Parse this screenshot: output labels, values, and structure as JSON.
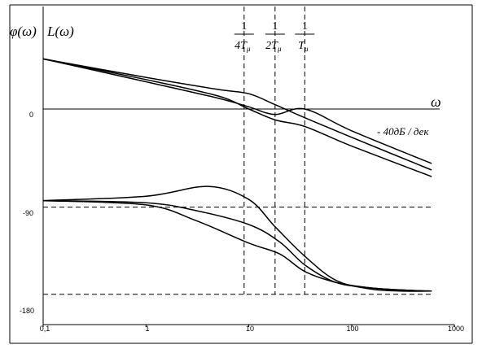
{
  "chart_data": {
    "type": "line",
    "x_scale": "log",
    "xlim": [
      0.1,
      1000
    ],
    "x_ticks": [
      "0,1",
      "1",
      "10",
      "100",
      "1000"
    ],
    "x_tick_values": [
      0.1,
      1,
      10,
      100,
      1000
    ],
    "y_ticks": [
      "0",
      "-90",
      "-180"
    ],
    "y_tick_values": [
      0,
      -90,
      -180
    ],
    "labels": {
      "phi": "φ(ω)",
      "L": "L(ω)",
      "omega": "ω",
      "slope": "- 40дБ / дек"
    },
    "vertical_markers": [
      {
        "x": 9,
        "num": "1",
        "den": "4T",
        "sub": "μ"
      },
      {
        "x": 18,
        "num": "1",
        "den": "2T",
        "sub": "μ"
      },
      {
        "x": 35,
        "num": "1",
        "den": "T",
        "sub": "μ"
      }
    ],
    "horizontal_reference_lines": [
      -90,
      -170
    ],
    "series": [
      {
        "group": "magnitude",
        "x": [
          0.1,
          1,
          5,
          10,
          18,
          35,
          100,
          600
        ],
        "y": [
          46,
          29,
          18,
          14,
          4,
          -8,
          -26,
          -56
        ]
      },
      {
        "group": "magnitude",
        "x": [
          0.1,
          1,
          5,
          10,
          18,
          35,
          100,
          600
        ],
        "y": [
          46,
          27,
          12,
          0,
          -10,
          -16,
          -34,
          -62
        ]
      },
      {
        "group": "magnitude",
        "x": [
          0.1,
          1,
          5,
          10,
          18,
          35,
          100,
          600
        ],
        "y": [
          46,
          25,
          10,
          2,
          -5,
          0,
          -20,
          -50
        ]
      },
      {
        "group": "phase",
        "x": [
          0.1,
          1,
          4,
          10,
          18,
          35,
          70,
          150,
          300,
          600
        ],
        "y": [
          -84,
          -80,
          -71,
          -83,
          -108,
          -135,
          -157,
          -165,
          -167,
          -167
        ]
      },
      {
        "group": "phase",
        "x": [
          0.1,
          1,
          3,
          10,
          20,
          35,
          70,
          150,
          300,
          600
        ],
        "y": [
          -84,
          -86,
          -93,
          -106,
          -122,
          -143,
          -159,
          -164,
          -166,
          -167
        ]
      },
      {
        "group": "phase",
        "x": [
          0.1,
          1,
          3,
          10,
          20,
          35,
          70,
          150,
          300,
          600
        ],
        "y": [
          -84,
          -88,
          -102,
          -123,
          -133,
          -149,
          -159,
          -164,
          -166,
          -167
        ]
      }
    ]
  }
}
